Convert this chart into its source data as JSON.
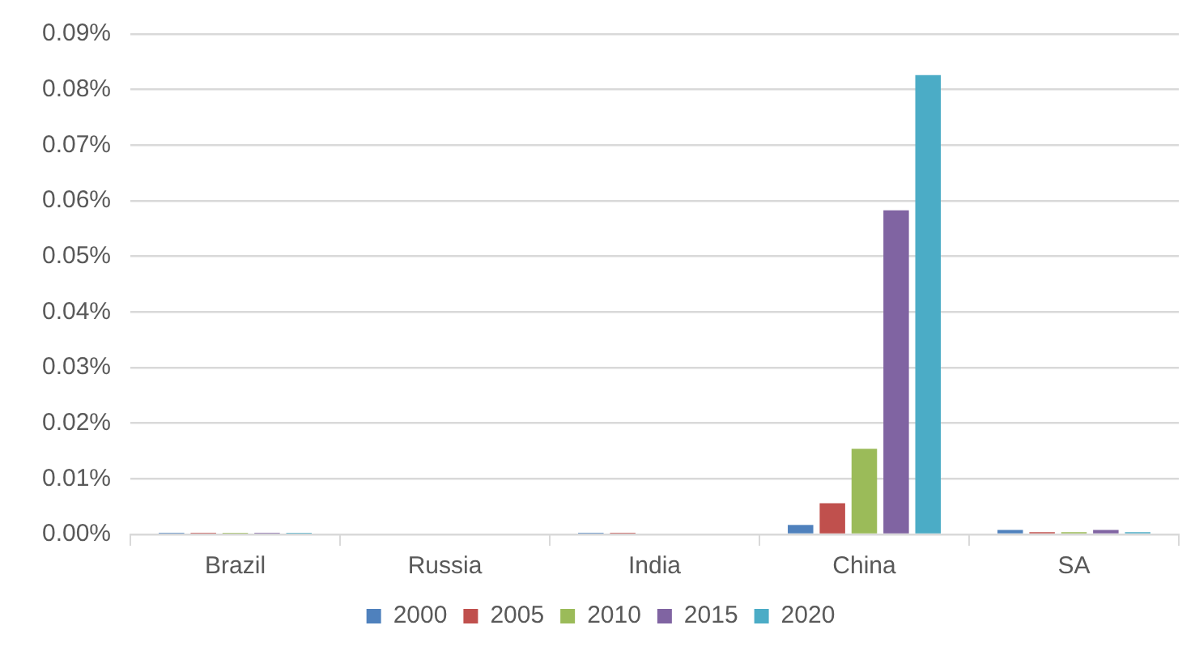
{
  "chart_data": {
    "type": "bar",
    "categories": [
      "Brazil",
      "Russia",
      "India",
      "China",
      "SA"
    ],
    "series": [
      {
        "name": "2000",
        "color": "#4f81bd",
        "values": [
          0.0003,
          0,
          0.0003,
          0.0017,
          0.0008
        ]
      },
      {
        "name": "2005",
        "color": "#c0504d",
        "values": [
          0.0003,
          0,
          0.0003,
          0.0056,
          0.0004
        ]
      },
      {
        "name": "2010",
        "color": "#9bbb59",
        "values": [
          0.0003,
          0,
          0,
          0.0154,
          0.0004
        ]
      },
      {
        "name": "2015",
        "color": "#8064a2",
        "values": [
          0.0003,
          0,
          0,
          0.0583,
          0.0008
        ]
      },
      {
        "name": "2020",
        "color": "#4bacc6",
        "values": [
          0.0003,
          0,
          0,
          0.0826,
          0.0004
        ]
      }
    ],
    "ylim": [
      0,
      0.09
    ],
    "yticks": [
      {
        "value": 0,
        "label": "0.00%"
      },
      {
        "value": 0.01,
        "label": "0.01%"
      },
      {
        "value": 0.02,
        "label": "0.02%"
      },
      {
        "value": 0.03,
        "label": "0.03%"
      },
      {
        "value": 0.04,
        "label": "0.04%"
      },
      {
        "value": 0.05,
        "label": "0.05%"
      },
      {
        "value": 0.06,
        "label": "0.06%"
      },
      {
        "value": 0.07,
        "label": "0.07%"
      },
      {
        "value": 0.08,
        "label": "0.08%"
      },
      {
        "value": 0.09,
        "label": "0.09%"
      }
    ],
    "grid": "y",
    "legend": "bottom"
  }
}
